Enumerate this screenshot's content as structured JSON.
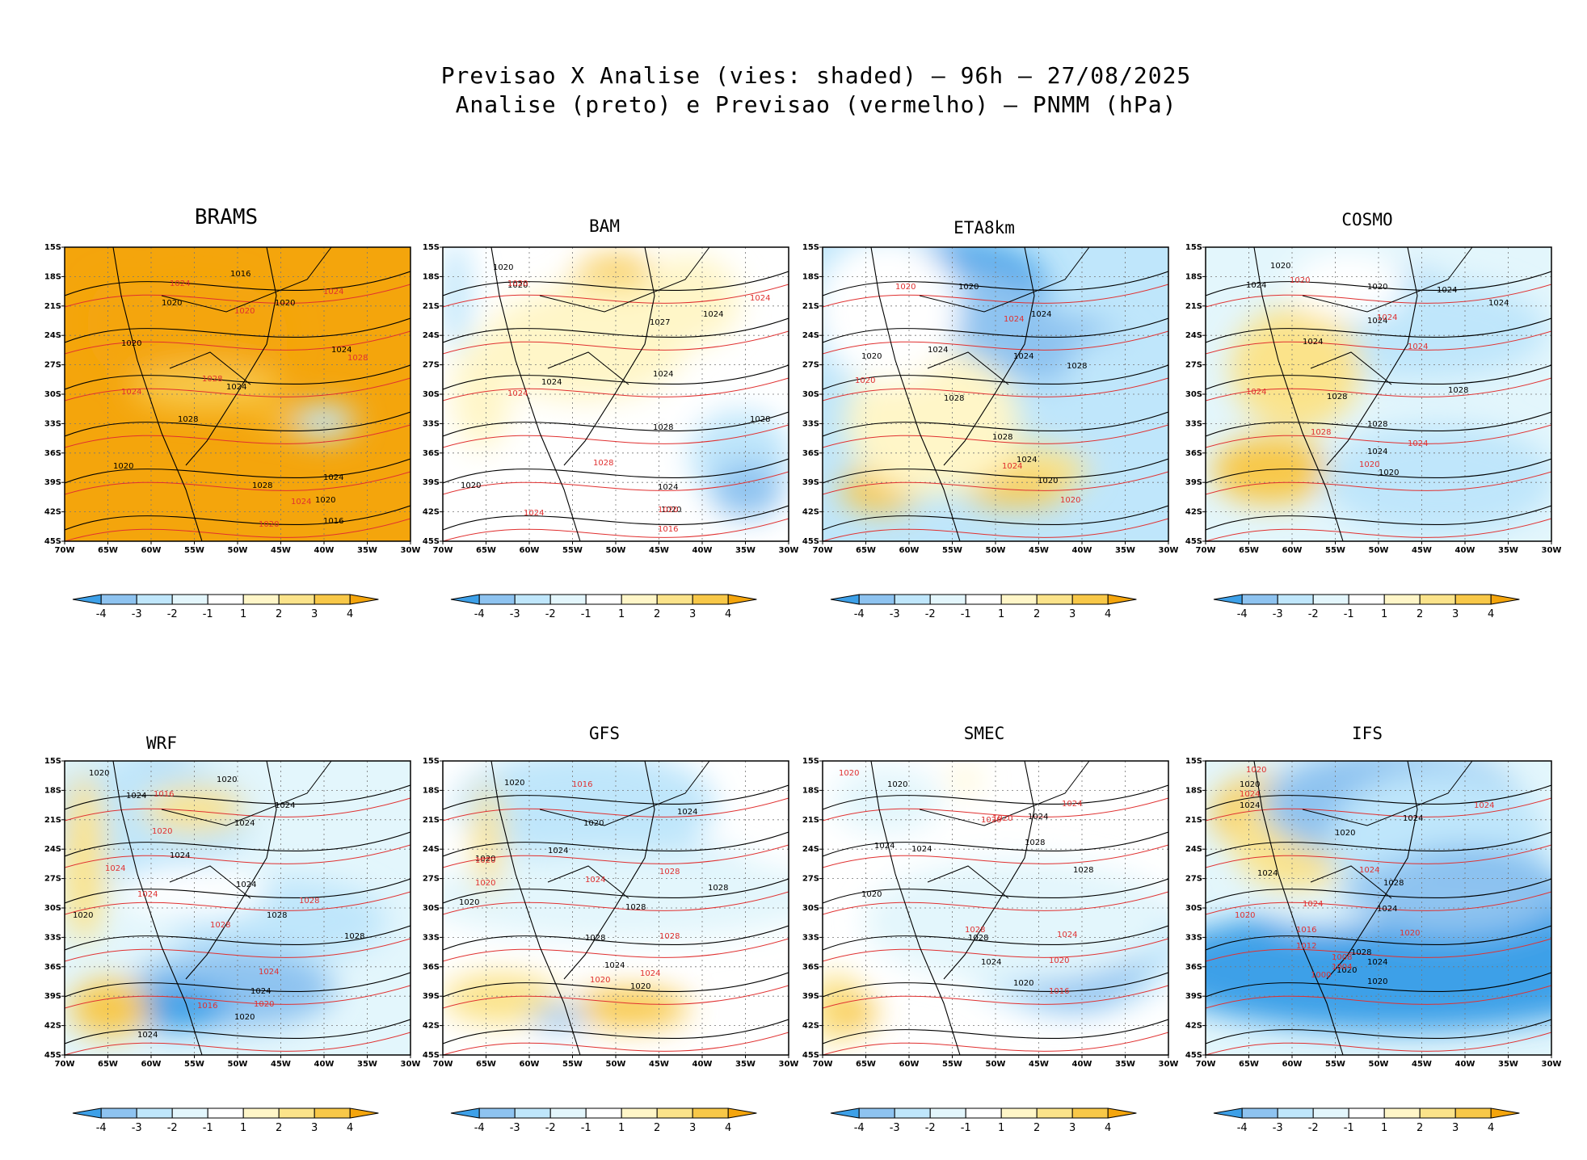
{
  "title": {
    "line1": "Previsao X Analise (vies: shaded) – 96h – 27/08/2025",
    "line2": "Analise (preto) e Previsao (vermelho) – PNMM (hPa)"
  },
  "colors": {
    "neg4": "#3da0e8",
    "neg3": "#8ec3f0",
    "neg2": "#bfe6fb",
    "neg1": "#e3f6fc",
    "zero": "#ffffff",
    "pos1": "#fff6c8",
    "pos2": "#fbe38a",
    "pos3": "#f8c848",
    "pos4": "#f4a50c",
    "analysis_contour": "#000000",
    "forecast_contour": "#e03030"
  },
  "map": {
    "lat_ticks": [
      "15S",
      "18S",
      "21S",
      "24S",
      "27S",
      "30S",
      "33S",
      "36S",
      "39S",
      "42S",
      "45S"
    ],
    "lon_ticks": [
      "70W",
      "65W",
      "60W",
      "55W",
      "50W",
      "45W",
      "40W",
      "35W",
      "30W"
    ]
  },
  "colorbar": {
    "labels": [
      "-4",
      "-3",
      "-2",
      "-1",
      "1",
      "2",
      "3",
      "4"
    ]
  },
  "panels": [
    {
      "name": "BRAMS",
      "dominant": "pos4",
      "patches": [
        [
          "pos4",
          200,
          180,
          260,
          200
        ],
        [
          "pos3",
          220,
          290,
          210,
          80
        ],
        [
          "neg2",
          400,
          360,
          90,
          60
        ],
        [
          "pos3",
          330,
          360,
          60,
          30
        ],
        [
          "pos4",
          80,
          160,
          80,
          160
        ]
      ],
      "analysis_labels": [
        [
          "1016",
          205,
          26
        ],
        [
          "1020",
          120,
          62
        ],
        [
          "1020",
          260,
          62
        ],
        [
          "1020",
          70,
          112
        ],
        [
          "1024",
          330,
          120
        ],
        [
          "1024",
          200,
          166
        ],
        [
          "1028",
          140,
          206
        ],
        [
          "1020",
          60,
          264
        ],
        [
          "1028",
          232,
          288
        ],
        [
          "1024",
          320,
          278
        ],
        [
          "1020",
          310,
          306
        ],
        [
          "1016",
          320,
          332
        ]
      ],
      "forecast_labels": [
        [
          "1024",
          130,
          38
        ],
        [
          "1020",
          210,
          72
        ],
        [
          "1024",
          320,
          48
        ],
        [
          "1028",
          170,
          156
        ],
        [
          "1028",
          350,
          130
        ],
        [
          "1024",
          70,
          172
        ],
        [
          "1024",
          280,
          308
        ],
        [
          "1020",
          240,
          336
        ]
      ]
    },
    {
      "name": "BAM",
      "dominant": "zero",
      "patches": [
        [
          "pos3",
          270,
          70,
          120,
          90
        ],
        [
          "pos2",
          260,
          140,
          200,
          140
        ],
        [
          "pos1",
          220,
          200,
          280,
          200
        ],
        [
          "pos1",
          380,
          110,
          140,
          160
        ],
        [
          "neg2",
          460,
          430,
          140,
          160
        ],
        [
          "neg3",
          470,
          500,
          100,
          100
        ],
        [
          "neg2",
          20,
          100,
          40,
          200
        ],
        [
          "pos1",
          60,
          300,
          80,
          200
        ]
      ],
      "analysis_labels": [
        [
          "1020",
          62,
          18
        ],
        [
          "1020",
          80,
          40
        ],
        [
          "1024",
          322,
          76
        ],
        [
          "1027",
          256,
          86
        ],
        [
          "1024",
          122,
          160
        ],
        [
          "1024",
          260,
          150
        ],
        [
          "1028",
          260,
          216
        ],
        [
          "1028",
          380,
          206
        ],
        [
          "1020",
          22,
          288
        ],
        [
          "1024",
          266,
          290
        ],
        [
          "1020",
          270,
          318
        ]
      ],
      "forecast_labels": [
        [
          "1020",
          80,
          38
        ],
        [
          "1024",
          380,
          56
        ],
        [
          "1024",
          80,
          174
        ],
        [
          "1028",
          186,
          260
        ],
        [
          "1024",
          100,
          322
        ],
        [
          "1020",
          266,
          318
        ],
        [
          "1016",
          266,
          342
        ]
      ]
    },
    {
      "name": "ETA8km",
      "dominant": "neg2",
      "patches": [
        [
          "neg4",
          200,
          80,
          260,
          160
        ],
        [
          "neg3",
          170,
          150,
          330,
          200
        ],
        [
          "neg3",
          360,
          210,
          200,
          120
        ],
        [
          "neg2",
          440,
          300,
          120,
          200
        ],
        [
          "pos2",
          300,
          460,
          200,
          90
        ],
        [
          "pos3",
          90,
          500,
          110,
          80
        ],
        [
          "pos3",
          300,
          505,
          140,
          50
        ],
        [
          "pos1",
          170,
          360,
          240,
          260
        ],
        [
          "zero",
          100,
          130,
          200,
          260
        ]
      ],
      "analysis_labels": [
        [
          "1020",
          168,
          42
        ],
        [
          "1024",
          258,
          76
        ],
        [
          "1024",
          130,
          120
        ],
        [
          "1024",
          236,
          128
        ],
        [
          "1020",
          48,
          128
        ],
        [
          "1028",
          302,
          140
        ],
        [
          "1028",
          150,
          180
        ],
        [
          "1028",
          210,
          228
        ],
        [
          "1024",
          240,
          256
        ],
        [
          "1020",
          266,
          282
        ]
      ],
      "forecast_labels": [
        [
          "1020",
          90,
          42
        ],
        [
          "1024",
          224,
          82
        ],
        [
          "1020",
          40,
          158
        ],
        [
          "1024",
          222,
          264
        ],
        [
          "1020",
          294,
          306
        ]
      ]
    },
    {
      "name": "COSMO",
      "dominant": "neg1",
      "patches": [
        [
          "neg3",
          300,
          100,
          160,
          90
        ],
        [
          "neg4",
          400,
          140,
          120,
          80
        ],
        [
          "neg2",
          330,
          170,
          350,
          180
        ],
        [
          "pos2",
          140,
          250,
          180,
          220
        ],
        [
          "pos3",
          100,
          460,
          160,
          120
        ],
        [
          "neg4",
          320,
          540,
          100,
          50
        ],
        [
          "neg2",
          360,
          480,
          320,
          200
        ],
        [
          "zero",
          220,
          80,
          160,
          120
        ]
      ],
      "analysis_labels": [
        [
          "1020",
          80,
          16
        ],
        [
          "1024",
          50,
          40
        ],
        [
          "1024",
          286,
          46
        ],
        [
          "1020",
          200,
          42
        ],
        [
          "1024",
          200,
          84
        ],
        [
          "1024",
          350,
          62
        ],
        [
          "1024",
          120,
          110
        ],
        [
          "1028",
          150,
          178
        ],
        [
          "1028",
          300,
          170
        ],
        [
          "1028",
          200,
          212
        ],
        [
          "1024",
          200,
          246
        ],
        [
          "1020",
          214,
          272
        ]
      ],
      "forecast_labels": [
        [
          "1020",
          104,
          34
        ],
        [
          "1024",
          212,
          80
        ],
        [
          "1024",
          250,
          116
        ],
        [
          "1024",
          50,
          172
        ],
        [
          "1028",
          130,
          222
        ],
        [
          "1024",
          250,
          236
        ],
        [
          "1020",
          190,
          262
        ]
      ]
    },
    {
      "name": "WRF",
      "dominant": "neg1",
      "patches": [
        [
          "neg3",
          140,
          60,
          150,
          140
        ],
        [
          "neg4",
          120,
          70,
          80,
          60
        ],
        [
          "neg2",
          120,
          120,
          300,
          220
        ],
        [
          "pos2",
          200,
          100,
          140,
          80
        ],
        [
          "neg2",
          330,
          330,
          300,
          150
        ],
        [
          "neg3",
          260,
          470,
          280,
          140
        ],
        [
          "neg4",
          170,
          510,
          150,
          80
        ],
        [
          "pos3",
          70,
          510,
          110,
          100
        ],
        [
          "pos2",
          30,
          200,
          60,
          300
        ],
        [
          "zero",
          200,
          270,
          200,
          90
        ]
      ],
      "analysis_labels": [
        [
          "1020",
          30,
          8
        ],
        [
          "1024",
          76,
          36
        ],
        [
          "1020",
          188,
          16
        ],
        [
          "1024",
          210,
          70
        ],
        [
          "1024",
          130,
          110
        ],
        [
          "1024",
          212,
          146
        ],
        [
          "1024",
          260,
          48
        ],
        [
          "1028",
          250,
          184
        ],
        [
          "1028",
          346,
          210
        ],
        [
          "1024",
          230,
          278
        ],
        [
          "1020",
          210,
          310
        ],
        [
          "1024",
          90,
          332
        ],
        [
          "1020",
          10,
          184
        ]
      ],
      "forecast_labels": [
        [
          "1016",
          110,
          34
        ],
        [
          "1020",
          108,
          80
        ],
        [
          "1024",
          50,
          126
        ],
        [
          "1024",
          90,
          158
        ],
        [
          "1028",
          180,
          196
        ],
        [
          "1028",
          290,
          166
        ],
        [
          "1024",
          240,
          254
        ],
        [
          "1020",
          234,
          294
        ],
        [
          "1016",
          164,
          296
        ]
      ]
    },
    {
      "name": "GFS",
      "dominant": "zero",
      "patches": [
        [
          "neg3",
          200,
          60,
          240,
          130
        ],
        [
          "neg2",
          220,
          90,
          360,
          200
        ],
        [
          "neg2",
          260,
          200,
          260,
          140
        ],
        [
          "neg2",
          330,
          240,
          300,
          120
        ],
        [
          "neg1",
          280,
          280,
          560,
          160
        ],
        [
          "pos2",
          90,
          490,
          160,
          90
        ],
        [
          "pos3",
          290,
          510,
          160,
          70
        ],
        [
          "neg3",
          180,
          530,
          80,
          40
        ],
        [
          "pos2",
          70,
          160,
          40,
          200
        ]
      ],
      "analysis_labels": [
        [
          "1020",
          76,
          20
        ],
        [
          "1020",
          174,
          70
        ],
        [
          "1024",
          290,
          56
        ],
        [
          "1024",
          130,
          104
        ],
        [
          "1028",
          226,
          174
        ],
        [
          "1028",
          328,
          150
        ],
        [
          "1028",
          176,
          212
        ],
        [
          "1024",
          200,
          246
        ],
        [
          "1020",
          232,
          272
        ],
        [
          "1020",
          20,
          168
        ],
        [
          "1020",
          40,
          114
        ]
      ],
      "forecast_labels": [
        [
          "1016",
          160,
          22
        ],
        [
          "1024",
          176,
          140
        ],
        [
          "1028",
          268,
          130
        ],
        [
          "1028",
          268,
          210
        ],
        [
          "1020",
          182,
          264
        ],
        [
          "1024",
          244,
          256
        ],
        [
          "1020",
          40,
          144
        ],
        [
          "1020",
          40,
          116
        ]
      ]
    },
    {
      "name": "SMEC",
      "dominant": "zero",
      "patches": [
        [
          "neg2",
          380,
          370,
          320,
          260
        ],
        [
          "neg3",
          390,
          400,
          200,
          200
        ],
        [
          "neg1",
          300,
          330,
          420,
          220
        ],
        [
          "pos2",
          20,
          510,
          80,
          120
        ],
        [
          "pos3",
          50,
          520,
          60,
          60
        ],
        [
          "pos1",
          220,
          40,
          40,
          40
        ],
        [
          "neg1",
          100,
          80,
          150,
          120
        ]
      ],
      "analysis_labels": [
        [
          "1020",
          80,
          22
        ],
        [
          "1024",
          254,
          62
        ],
        [
          "1024",
          110,
          102
        ],
        [
          "1024",
          64,
          98
        ],
        [
          "1028",
          250,
          94
        ],
        [
          "1028",
          310,
          128
        ],
        [
          "1028",
          180,
          212
        ],
        [
          "1024",
          196,
          242
        ],
        [
          "1020",
          236,
          268
        ],
        [
          "1020",
          48,
          158
        ]
      ],
      "forecast_labels": [
        [
          "1020",
          20,
          8
        ],
        [
          "1020",
          210,
          64
        ],
        [
          "1024",
          296,
          46
        ],
        [
          "1020",
          196,
          66
        ],
        [
          "1028",
          176,
          202
        ],
        [
          "1024",
          290,
          208
        ],
        [
          "1020",
          280,
          240
        ],
        [
          "1016",
          280,
          278
        ]
      ]
    },
    {
      "name": "IFS",
      "dominant": "neg1",
      "patches": [
        [
          "pos3",
          100,
          110,
          160,
          140
        ],
        [
          "pos2",
          140,
          150,
          180,
          200
        ],
        [
          "neg4",
          300,
          70,
          200,
          80
        ],
        [
          "neg3",
          290,
          90,
          360,
          200
        ],
        [
          "neg2",
          360,
          170,
          300,
          260
        ],
        [
          "neg4",
          300,
          430,
          700,
          220
        ],
        [
          "neg4",
          400,
          300,
          300,
          200
        ],
        [
          "neg3",
          380,
          280,
          300,
          140
        ],
        [
          "neg1",
          180,
          320,
          150,
          40
        ]
      ],
      "analysis_labels": [
        [
          "1020",
          42,
          22
        ],
        [
          "1024",
          42,
          48
        ],
        [
          "1020",
          160,
          82
        ],
        [
          "1024",
          244,
          64
        ],
        [
          "1024",
          64,
          132
        ],
        [
          "1028",
          220,
          144
        ],
        [
          "1024",
          212,
          176
        ],
        [
          "1020",
          162,
          252
        ],
        [
          "1028",
          180,
          230
        ],
        [
          "1024",
          200,
          242
        ],
        [
          "1020",
          200,
          266
        ]
      ],
      "forecast_labels": [
        [
          "1020",
          50,
          4
        ],
        [
          "1024",
          42,
          34
        ],
        [
          "1024",
          332,
          48
        ],
        [
          "1024",
          190,
          128
        ],
        [
          "1020",
          36,
          184
        ],
        [
          "1016",
          112,
          202
        ],
        [
          "1012",
          112,
          222
        ],
        [
          "1008",
          156,
          236
        ],
        [
          "1004",
          156,
          248
        ],
        [
          "1000",
          130,
          258
        ],
        [
          "1020",
          240,
          206
        ],
        [
          "1024",
          120,
          170
        ]
      ]
    }
  ]
}
